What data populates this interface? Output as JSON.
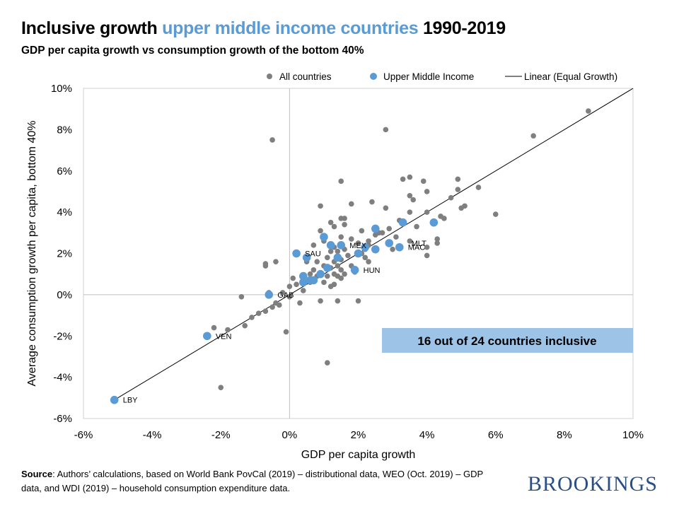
{
  "header": {
    "title_part1": "Inclusive growth ",
    "title_highlight": "upper middle income countries",
    "title_part2": " 1990-2019",
    "subtitle": "GDP per capita growth vs consumption growth of the bottom 40%"
  },
  "footer": {
    "source_label": "Source",
    "source_text": ": Authors’ calculations, based on World Bank PovCal (2019) – distributional data, WEO (Oct. 2019) – GDP data, and WDI (2019) – household consumption expenditure data.",
    "brand": "BROOKINGS"
  },
  "colors": {
    "all_countries": "#7f7f7f",
    "upper_middle_income": "#5b9bd5",
    "callout_fill": "#9dc3e6",
    "equal_growth_line": "#000000"
  },
  "chart_data": {
    "type": "scatter",
    "title": "Inclusive growth upper middle income countries 1990-2019",
    "subtitle": "GDP per capita growth vs consumption growth of the bottom 40%",
    "xlabel": "GDP per capita growth",
    "ylabel": "Average consumption growth per capita, bottom 40%",
    "xlim": [
      -6,
      10
    ],
    "ylim": [
      -6,
      10
    ],
    "x_ticks": [
      "-6%",
      "-4%",
      "-2%",
      "0%",
      "2%",
      "4%",
      "6%",
      "8%",
      "10%"
    ],
    "y_ticks": [
      "-6%",
      "-4%",
      "-2%",
      "0%",
      "2%",
      "4%",
      "6%",
      "8%",
      "10%"
    ],
    "grid": "vertical and horizontal lines at 0 only",
    "legend_position": "top",
    "legend": [
      "All countries",
      "Upper Middle Income",
      "Linear (Equal Growth)"
    ],
    "annotation": "16 out of 24 countries inclusive",
    "equal_growth_line": [
      [
        -5.1,
        -5.1
      ],
      [
        10,
        10
      ]
    ],
    "series": [
      {
        "name": "All countries",
        "points": [
          [
            8.7,
            8.9
          ],
          [
            7.1,
            7.7
          ],
          [
            6.0,
            3.9
          ],
          [
            5.5,
            5.2
          ],
          [
            5.1,
            4.3
          ],
          [
            5.0,
            4.2
          ],
          [
            4.9,
            5.6
          ],
          [
            4.9,
            5.1
          ],
          [
            4.7,
            4.7
          ],
          [
            4.5,
            3.7
          ],
          [
            4.4,
            3.8
          ],
          [
            4.3,
            2.7
          ],
          [
            4.3,
            2.5
          ],
          [
            4.0,
            4.0
          ],
          [
            4.0,
            2.3
          ],
          [
            4.0,
            1.9
          ],
          [
            4.0,
            5.0
          ],
          [
            3.9,
            5.5
          ],
          [
            3.7,
            3.3
          ],
          [
            3.6,
            4.6
          ],
          [
            3.5,
            5.7
          ],
          [
            3.5,
            4.8
          ],
          [
            3.5,
            4.0
          ],
          [
            3.5,
            2.6
          ],
          [
            3.3,
            5.6
          ],
          [
            3.2,
            3.6
          ],
          [
            3.1,
            2.8
          ],
          [
            3.0,
            2.2
          ],
          [
            2.9,
            3.2
          ],
          [
            2.8,
            8.0
          ],
          [
            2.8,
            4.2
          ],
          [
            2.7,
            3.0
          ],
          [
            2.6,
            3.0
          ],
          [
            2.5,
            2.9
          ],
          [
            2.4,
            4.5
          ],
          [
            2.3,
            1.6
          ],
          [
            2.3,
            2.6
          ],
          [
            2.2,
            2.2
          ],
          [
            2.2,
            1.8
          ],
          [
            2.1,
            3.1
          ],
          [
            2.1,
            2.0
          ],
          [
            2.0,
            -0.3
          ],
          [
            2.0,
            2.5
          ],
          [
            1.9,
            1.1
          ],
          [
            1.8,
            2.7
          ],
          [
            1.8,
            4.4
          ],
          [
            1.8,
            1.4
          ],
          [
            1.7,
            1.9
          ],
          [
            1.6,
            3.7
          ],
          [
            1.6,
            3.4
          ],
          [
            1.6,
            2.2
          ],
          [
            1.5,
            5.5
          ],
          [
            1.5,
            3.7
          ],
          [
            1.5,
            2.8
          ],
          [
            1.5,
            1.7
          ],
          [
            1.5,
            1.2
          ],
          [
            1.5,
            0.8
          ],
          [
            1.4,
            2.1
          ],
          [
            1.4,
            1.4
          ],
          [
            1.4,
            0.9
          ],
          [
            1.4,
            -0.3
          ],
          [
            1.3,
            3.3
          ],
          [
            1.3,
            2.3
          ],
          [
            1.3,
            1.6
          ],
          [
            1.3,
            1.0
          ],
          [
            1.3,
            0.5
          ],
          [
            1.2,
            3.5
          ],
          [
            1.2,
            2.1
          ],
          [
            1.2,
            1.3
          ],
          [
            1.1,
            1.8
          ],
          [
            1.1,
            0.9
          ],
          [
            1.1,
            -3.3
          ],
          [
            1.0,
            2.6
          ],
          [
            1.0,
            1.4
          ],
          [
            1.0,
            0.6
          ],
          [
            0.9,
            4.3
          ],
          [
            0.9,
            3.1
          ],
          [
            0.9,
            -0.3
          ],
          [
            0.8,
            1.6
          ],
          [
            0.8,
            0.9
          ],
          [
            0.7,
            2.4
          ],
          [
            0.7,
            1.2
          ],
          [
            0.6,
            0.6
          ],
          [
            0.5,
            1.6
          ],
          [
            0.4,
            0.2
          ],
          [
            0.3,
            -0.4
          ],
          [
            0.2,
            0.5
          ],
          [
            0.1,
            0.8
          ],
          [
            0.0,
            0.4
          ],
          [
            0.0,
            -0.1
          ],
          [
            -0.1,
            -1.8
          ],
          [
            -0.2,
            0.1
          ],
          [
            -0.3,
            -0.5
          ],
          [
            -0.4,
            1.6
          ],
          [
            -0.4,
            -0.4
          ],
          [
            -0.5,
            7.5
          ],
          [
            -0.5,
            -0.6
          ],
          [
            -0.6,
            0.1
          ],
          [
            -0.7,
            -0.8
          ],
          [
            -0.7,
            1.4
          ],
          [
            -0.7,
            1.5
          ],
          [
            -0.9,
            -0.9
          ],
          [
            -1.1,
            -1.1
          ],
          [
            -1.3,
            -1.5
          ],
          [
            -1.4,
            -0.1
          ],
          [
            -1.8,
            -1.7
          ],
          [
            -2.0,
            -4.5
          ],
          [
            -2.2,
            -1.6
          ],
          [
            1.2,
            0.4
          ],
          [
            1.6,
            1.0
          ],
          [
            2.3,
            2.4
          ],
          [
            0.6,
            1.0
          ]
        ]
      },
      {
        "name": "Upper Middle Income",
        "points": [
          [
            4.2,
            3.5
          ],
          [
            3.3,
            3.5
          ],
          [
            3.2,
            2.3
          ],
          [
            2.9,
            2.5
          ],
          [
            2.5,
            3.2
          ],
          [
            2.5,
            2.2
          ],
          [
            2.2,
            2.3
          ],
          [
            2.0,
            2.0
          ],
          [
            1.9,
            1.2
          ],
          [
            1.5,
            2.4
          ],
          [
            1.4,
            1.8
          ],
          [
            1.2,
            2.4
          ],
          [
            1.1,
            1.3
          ],
          [
            1.0,
            2.8
          ],
          [
            0.9,
            1.0
          ],
          [
            0.7,
            0.7
          ],
          [
            0.6,
            0.7
          ],
          [
            0.5,
            1.8
          ],
          [
            0.4,
            0.6
          ],
          [
            0.4,
            0.9
          ],
          [
            0.2,
            2.0
          ],
          [
            -0.6,
            0.0
          ],
          [
            -2.4,
            -2.0
          ],
          [
            -5.1,
            -5.1
          ]
        ]
      }
    ],
    "point_labels": [
      {
        "text": "MEX",
        "x": 1.5,
        "y": 2.4
      },
      {
        "text": "MLT",
        "x": 3.3,
        "y": 2.5
      },
      {
        "text": "MAC",
        "x": 3.2,
        "y": 2.3
      },
      {
        "text": "SAU",
        "x": 0.2,
        "y": 2.0
      },
      {
        "text": "HUN",
        "x": 1.9,
        "y": 1.2
      },
      {
        "text": "GAB",
        "x": -0.6,
        "y": 0.0
      },
      {
        "text": "VEN",
        "x": -2.4,
        "y": -2.0
      },
      {
        "text": "LBY",
        "x": -5.1,
        "y": -5.1
      }
    ]
  }
}
